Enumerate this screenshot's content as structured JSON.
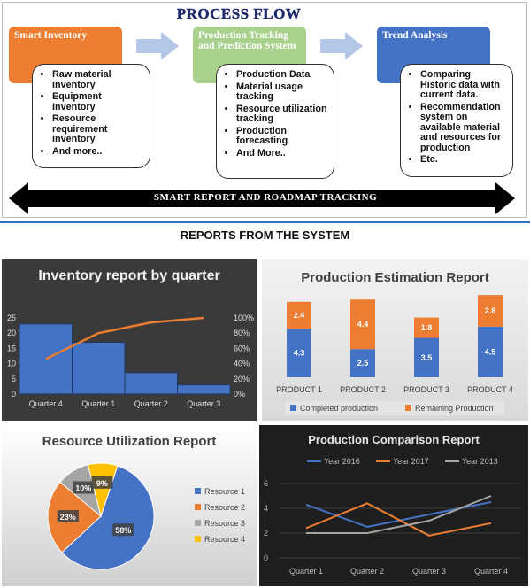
{
  "process_flow": {
    "title": "PROCESS FLOW",
    "stages": [
      {
        "title": "Smart Inventory",
        "color": "#ed7d31",
        "items": [
          "Raw material inventory",
          "Equipment Inventory",
          "Resource requirement inventory",
          "And more.."
        ]
      },
      {
        "title": "Production Tracking and Prediction System",
        "color": "#a9d18e",
        "items": [
          "Production Data",
          "Material usage tracking",
          "Resource utilization tracking",
          "Production forecasting",
          "And More.."
        ]
      },
      {
        "title": "Trend Analysis",
        "color": "#4472c4",
        "items": [
          "Comparing Historic data with current data.",
          "Recommendation system on available material and resources for production",
          "Etc."
        ]
      }
    ],
    "band_text": "SMART REPORT AND ROADMAP TRACKING"
  },
  "reports_title": "REPORTS FROM THE SYSTEM",
  "chart_data": [
    {
      "type": "bar",
      "title": "Inventory report by quarter",
      "categories": [
        "Quarter 4",
        "Quarter 1",
        "Quarter 2",
        "Quarter 3"
      ],
      "values": [
        23,
        17,
        7,
        3
      ],
      "cumulative_percent": [
        46,
        80,
        94,
        100
      ],
      "ylim": [
        0,
        25
      ],
      "yticks": [
        "0",
        "5",
        "10",
        "15",
        "20",
        "25"
      ],
      "y2ticks": [
        "0%",
        "20%",
        "40%",
        "60%",
        "80%",
        "100%"
      ],
      "bar_color": "#4472c4",
      "line_color": "#ed7d31"
    },
    {
      "type": "bar",
      "title": "Production Estimation Report",
      "categories": [
        "PRODUCT 1",
        "PRODUCT 2",
        "PRODUCT 3",
        "PRODUCT 4"
      ],
      "series": [
        {
          "name": "Completed production",
          "values": [
            4.3,
            2.5,
            3.5,
            4.5
          ],
          "color": "#4472c4"
        },
        {
          "name": "Remaining Production",
          "values": [
            2.4,
            4.4,
            1.8,
            2.8
          ],
          "color": "#ed7d31"
        }
      ],
      "value_labels": [
        [
          "4.3",
          "2.5",
          "3.5",
          "4.5"
        ],
        [
          "2.4",
          "4.4",
          "1.8",
          "2.8"
        ]
      ]
    },
    {
      "type": "pie",
      "title": "Resource Utilization Report",
      "labels": [
        "Resource 1",
        "Resource 2",
        "Resource 3",
        "Resource 4"
      ],
      "values": [
        58,
        23,
        10,
        9
      ],
      "value_labels": [
        "58%",
        "23%",
        "10%",
        "9%"
      ],
      "colors": [
        "#4472c4",
        "#ed7d31",
        "#a5a5a5",
        "#ffc000"
      ]
    },
    {
      "type": "line",
      "title": "Production Comparison Report",
      "categories": [
        "Quarter 1",
        "Quarter 2",
        "Quarter 3",
        "Quarter 4"
      ],
      "series": [
        {
          "name": "Year 2016",
          "values": [
            4.3,
            2.5,
            3.5,
            4.5
          ],
          "color": "#4472c4"
        },
        {
          "name": "Year 2017",
          "values": [
            2.4,
            4.4,
            1.8,
            2.8
          ],
          "color": "#ed7d31"
        },
        {
          "name": "Year 2013",
          "values": [
            2,
            2,
            3,
            5
          ],
          "color": "#a5a5a5"
        }
      ],
      "ylim": [
        0,
        6
      ],
      "yticks": [
        "0",
        "2",
        "4",
        "6"
      ]
    }
  ]
}
